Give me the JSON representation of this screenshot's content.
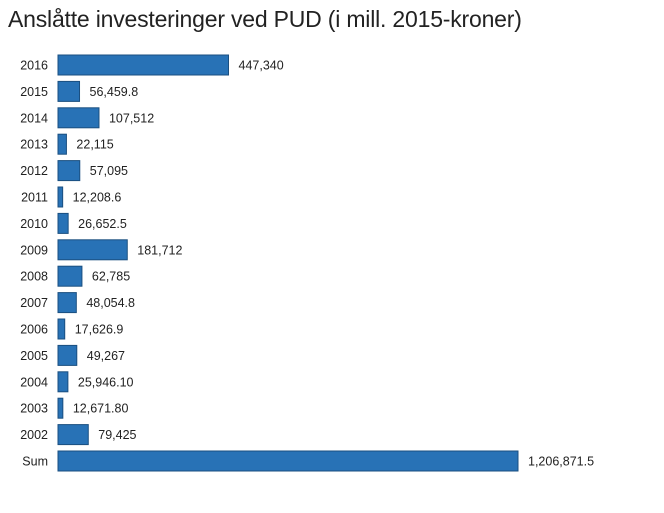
{
  "chart_data": {
    "type": "bar",
    "orientation": "horizontal",
    "title": "Anslåtte investeringer ved PUD (i mill. 2015-kroner)",
    "xlabel": "",
    "ylabel": "",
    "grid": false,
    "bar_color": "#2872b6",
    "categories": [
      "2016",
      "2015",
      "2014",
      "2013",
      "2012",
      "2011",
      "2010",
      "2009",
      "2008",
      "2007",
      "2006",
      "2005",
      "2004",
      "2003",
      "2002",
      "Sum"
    ],
    "values": [
      447340,
      56459.8,
      107512,
      22115,
      57095,
      12208.6,
      26652.5,
      181712,
      62785,
      48054.8,
      17626.9,
      49267,
      25946.1,
      12671.8,
      79425,
      1206871.5
    ],
    "value_labels": [
      "447,340",
      "56,459.8",
      "107,512",
      "22,115",
      "57,095",
      "12,208.6",
      "26,652.5",
      "181,712",
      "62,785",
      "48,054.8",
      "17,626.9",
      "49,267",
      "25,946.10",
      "12,671.80",
      "79,425",
      "1,206,871.5"
    ],
    "xlim": [
      0,
      1206871.5
    ]
  }
}
